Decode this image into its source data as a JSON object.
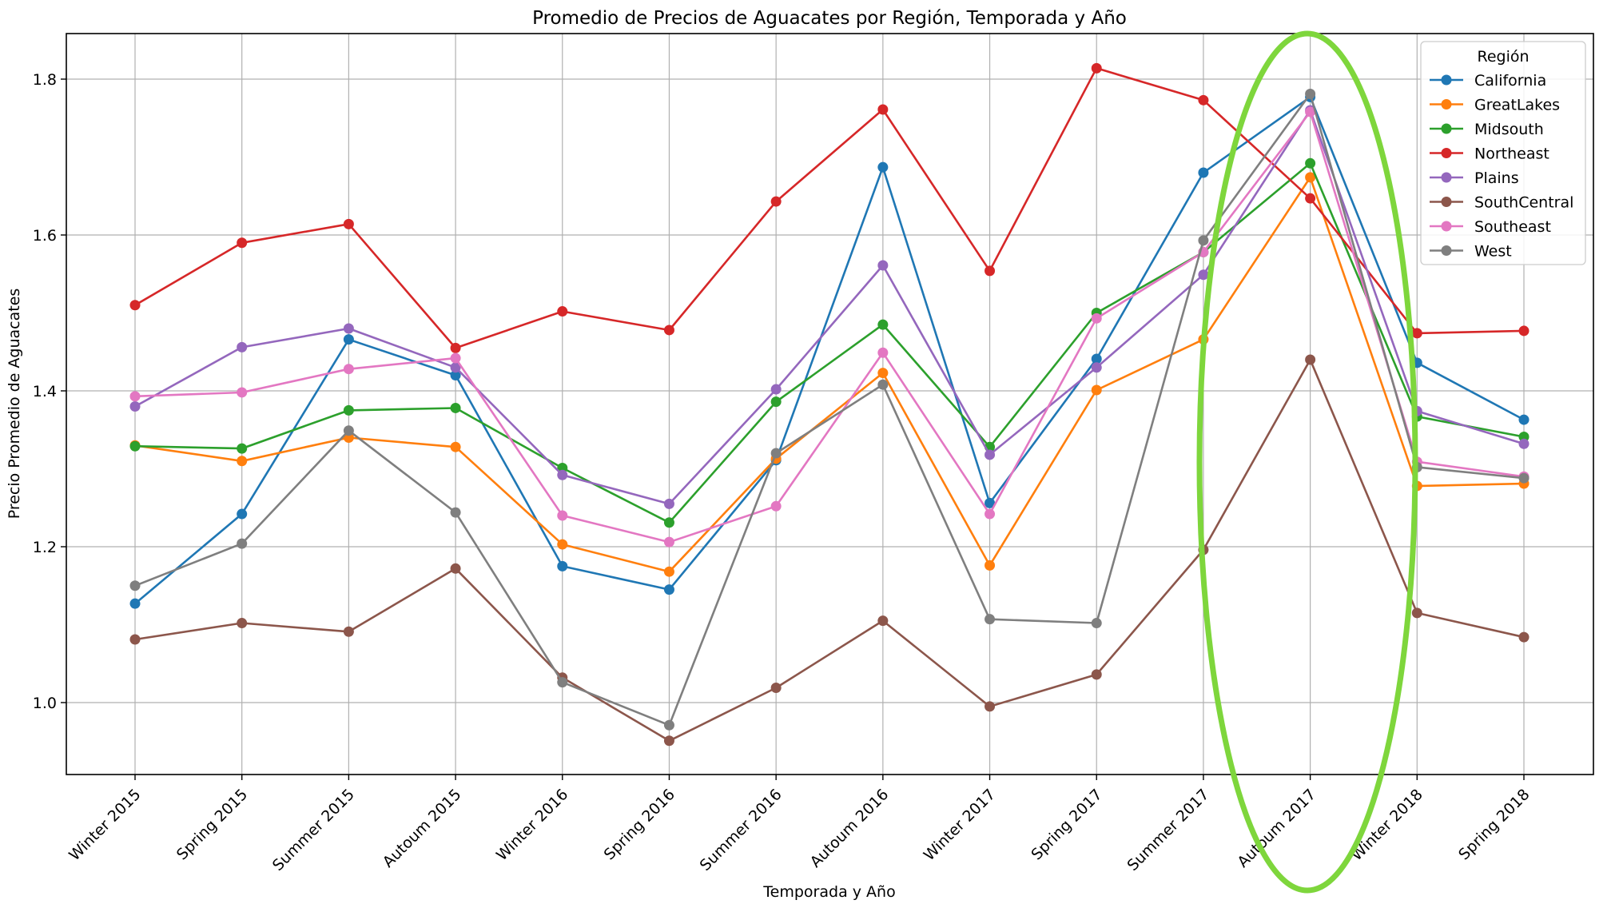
{
  "chart_data": {
    "type": "line",
    "title": "Promedio de Precios de Aguacates por Región, Temporada y Año",
    "xlabel": "Temporada y Año",
    "ylabel": "Precio Promedio de Aguacates",
    "ylim": [
      0.915,
      1.86
    ],
    "yticks": [
      1.0,
      1.2,
      1.4,
      1.6,
      1.8
    ],
    "ytick_labels": [
      "1.0",
      "1.2",
      "1.4",
      "1.6",
      "1.8"
    ],
    "grid": true,
    "legend_title": "Región",
    "legend_position": "top-right",
    "categories": [
      "Winter 2015",
      "Spring 2015",
      "Summer 2015",
      "Autoum 2015",
      "Winter 2016",
      "Spring 2016",
      "Summer 2016",
      "Autoum 2016",
      "Winter 2017",
      "Spring 2017",
      "Summer 2017",
      "Autoum 2017",
      "Winter 2018",
      "Spring 2018"
    ],
    "series": [
      {
        "name": "California",
        "color": "#1f77b4",
        "values": [
          1.127,
          1.242,
          1.466,
          1.42,
          1.175,
          1.145,
          1.311,
          1.687,
          1.256,
          1.441,
          1.68,
          1.777,
          1.436,
          1.363
        ]
      },
      {
        "name": "GreatLakes",
        "color": "#ff7f0e",
        "values": [
          1.33,
          1.31,
          1.34,
          1.328,
          1.203,
          1.168,
          1.313,
          1.423,
          1.176,
          1.401,
          1.466,
          1.674,
          1.278,
          1.281
        ]
      },
      {
        "name": "Midsouth",
        "color": "#2ca02c",
        "values": [
          1.329,
          1.326,
          1.375,
          1.378,
          1.301,
          1.231,
          1.386,
          1.485,
          1.328,
          1.5,
          1.578,
          1.692,
          1.367,
          1.341
        ]
      },
      {
        "name": "Northeast",
        "color": "#d62728",
        "values": [
          1.51,
          1.59,
          1.614,
          1.455,
          1.502,
          1.478,
          1.643,
          1.761,
          1.554,
          1.814,
          1.773,
          1.647,
          1.474,
          1.477
        ]
      },
      {
        "name": "Plains",
        "color": "#9467bd",
        "values": [
          1.38,
          1.456,
          1.48,
          1.43,
          1.292,
          1.255,
          1.402,
          1.561,
          1.318,
          1.43,
          1.549,
          1.76,
          1.374,
          1.332
        ]
      },
      {
        "name": "SouthCentral",
        "color": "#8c564b",
        "values": [
          1.081,
          1.102,
          1.091,
          1.172,
          1.032,
          0.951,
          1.019,
          1.105,
          0.995,
          1.036,
          1.196,
          1.44,
          1.115,
          1.084
        ]
      },
      {
        "name": "Southeast",
        "color": "#e377c2",
        "values": [
          1.393,
          1.398,
          1.428,
          1.442,
          1.24,
          1.206,
          1.252,
          1.449,
          1.242,
          1.493,
          1.578,
          1.758,
          1.309,
          1.29
        ]
      },
      {
        "name": "West",
        "color": "#7f7f7f",
        "values": [
          1.15,
          1.204,
          1.349,
          1.244,
          1.026,
          0.971,
          1.32,
          1.408,
          1.107,
          1.102,
          1.593,
          1.781,
          1.302,
          1.288
        ]
      }
    ],
    "annotation": {
      "shape": "ellipse",
      "color": "#7ed63c",
      "highlights": "Autoum 2017"
    }
  }
}
